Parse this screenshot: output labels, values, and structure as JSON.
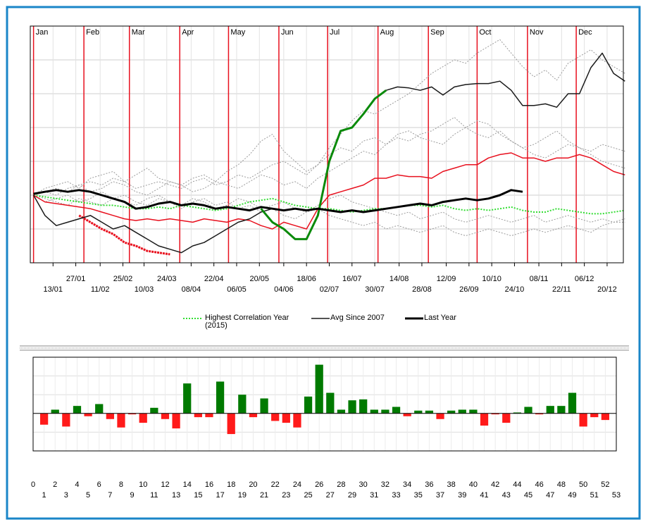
{
  "chart_data": [
    {
      "type": "line",
      "ylim": [
        0,
        7
      ],
      "yticks": [
        0,
        1,
        2,
        3,
        4,
        5,
        6,
        7
      ],
      "xlim": [
        -2,
        363
      ],
      "grid": true,
      "month_markers": [
        {
          "value": 0,
          "label": "Jan"
        },
        {
          "value": 31,
          "label": "Feb"
        },
        {
          "value": 59,
          "label": "Mar"
        },
        {
          "value": 90,
          "label": "Apr"
        },
        {
          "value": 120,
          "label": "May"
        },
        {
          "value": 151,
          "label": "Jun"
        },
        {
          "value": 181,
          "label": "Jul"
        },
        {
          "value": 212,
          "label": "Aug"
        },
        {
          "value": 243,
          "label": "Sep"
        },
        {
          "value": 273,
          "label": "Oct"
        },
        {
          "value": 304,
          "label": "Nov"
        },
        {
          "value": 334,
          "label": "Dec"
        }
      ],
      "month_color": "#e8101e",
      "xticks": [
        {
          "value": 12,
          "label": "13/01"
        },
        {
          "value": 26,
          "label": "27/01"
        },
        {
          "value": 41,
          "label": "11/02"
        },
        {
          "value": 55,
          "label": "25/02"
        },
        {
          "value": 68,
          "label": "10/03"
        },
        {
          "value": 82,
          "label": "24/03"
        },
        {
          "value": 97,
          "label": "08/04"
        },
        {
          "value": 111,
          "label": "22/04"
        },
        {
          "value": 125,
          "label": "06/05"
        },
        {
          "value": 139,
          "label": "20/05"
        },
        {
          "value": 154,
          "label": "04/06"
        },
        {
          "value": 168,
          "label": "18/06"
        },
        {
          "value": 182,
          "label": "02/07"
        },
        {
          "value": 196,
          "label": "16/07"
        },
        {
          "value": 210,
          "label": "30/07"
        },
        {
          "value": 225,
          "label": "14/08"
        },
        {
          "value": 239,
          "label": "28/08"
        },
        {
          "value": 254,
          "label": "12/09"
        },
        {
          "value": 268,
          "label": "26/09"
        },
        {
          "value": 282,
          "label": "10/10"
        },
        {
          "value": 296,
          "label": "24/10"
        },
        {
          "value": 311,
          "label": "08/11"
        },
        {
          "value": 325,
          "label": "22/11"
        },
        {
          "value": 339,
          "label": "06/12"
        },
        {
          "value": 353,
          "label": "20/12"
        }
      ],
      "x": [
        0,
        7,
        14,
        21,
        28,
        35,
        42,
        49,
        56,
        63,
        70,
        77,
        84,
        91,
        98,
        105,
        112,
        119,
        126,
        133,
        140,
        147,
        154,
        161,
        168,
        175,
        182,
        189,
        196,
        203,
        210,
        217,
        224,
        231,
        238,
        245,
        252,
        259,
        266,
        273,
        280,
        287,
        294,
        301,
        308,
        315,
        322,
        329,
        336,
        343,
        350,
        357,
        364
      ],
      "series": [
        {
          "color": "#9a9a9a",
          "width": 1,
          "dash": "2,2",
          "values": [
            2.0,
            2.1,
            2.2,
            2.1,
            2.3,
            2.4,
            2.3,
            2.5,
            2.4,
            2.2,
            2.3,
            2.4,
            2.3,
            2.2,
            2.4,
            2.5,
            2.3,
            2.4,
            2.6,
            2.5,
            2.7,
            2.9,
            3.0,
            2.8,
            2.6,
            2.9,
            3.4,
            3.8,
            4.2,
            4.5,
            4.4,
            4.6,
            4.8,
            5.0,
            5.3,
            5.6,
            5.8,
            6.0,
            5.9,
            6.2,
            6.4,
            6.6,
            6.2,
            5.8,
            5.5,
            5.7,
            5.4,
            5.9,
            6.1,
            6.3,
            6.0,
            5.8,
            5.6
          ]
        },
        {
          "color": "#9a9a9a",
          "width": 1,
          "dash": "2,2",
          "values": [
            2.0,
            2.2,
            2.3,
            2.4,
            2.2,
            2.5,
            2.6,
            2.7,
            2.4,
            2.6,
            2.8,
            2.5,
            2.4,
            2.3,
            2.5,
            2.6,
            2.4,
            2.7,
            2.9,
            3.2,
            3.6,
            3.8,
            3.3,
            3.0,
            2.7,
            2.9,
            3.2,
            3.4,
            3.3,
            3.6,
            3.7,
            3.5,
            3.8,
            3.9,
            3.7,
            3.6,
            3.5,
            3.8,
            4.0,
            4.2,
            4.1,
            3.8,
            3.6,
            3.4,
            3.5,
            3.7,
            3.9,
            3.6,
            3.4,
            3.3,
            3.5,
            3.4,
            3.3
          ]
        },
        {
          "color": "#9a9a9a",
          "width": 1,
          "dash": "2,2",
          "values": [
            2.0,
            1.9,
            1.8,
            1.7,
            1.9,
            1.8,
            1.7,
            1.9,
            2.0,
            1.8,
            1.7,
            1.9,
            1.8,
            1.6,
            1.8,
            1.9,
            1.7,
            1.8,
            1.6,
            1.7,
            1.5,
            1.6,
            1.4,
            1.3,
            1.5,
            1.6,
            1.4,
            1.3,
            1.2,
            1.1,
            1.2,
            1.0,
            1.1,
            1.0,
            0.9,
            1.0,
            1.1,
            0.9,
            0.8,
            0.9,
            1.0,
            0.9,
            0.8,
            0.9,
            1.0,
            0.9,
            1.0,
            1.1,
            1.0,
            0.9,
            1.1,
            1.2,
            1.2
          ]
        },
        {
          "color": "#9a9a9a",
          "width": 1,
          "dash": "2,2",
          "values": [
            2.0,
            2.1,
            2.0,
            2.2,
            2.3,
            2.1,
            2.2,
            2.4,
            2.3,
            2.1,
            2.0,
            2.2,
            2.4,
            2.3,
            2.1,
            2.2,
            2.4,
            2.3,
            2.2,
            2.4,
            2.6,
            2.5,
            2.3,
            2.4,
            2.2,
            2.5,
            2.7,
            2.9,
            3.1,
            3.3,
            3.2,
            3.5,
            3.7,
            3.6,
            3.8,
            3.9,
            4.1,
            4.3,
            4.0,
            3.8,
            3.7,
            3.9,
            3.6,
            3.4,
            3.2,
            3.1,
            3.3,
            3.5,
            3.4,
            3.2,
            3.0,
            2.9,
            2.8
          ]
        },
        {
          "color": "#9a9a9a",
          "width": 1,
          "dash": "2,2",
          "values": [
            2.0,
            1.8,
            1.9,
            2.0,
            1.8,
            1.9,
            2.1,
            1.9,
            1.8,
            1.7,
            1.9,
            2.0,
            1.8,
            1.7,
            1.9,
            1.8,
            1.6,
            1.7,
            1.9,
            1.8,
            1.6,
            1.7,
            1.8,
            1.6,
            1.5,
            1.7,
            1.9,
            2.0,
            1.8,
            1.7,
            1.6,
            1.5,
            1.4,
            1.5,
            1.3,
            1.4,
            1.5,
            1.3,
            1.2,
            1.3,
            1.4,
            1.3,
            1.2,
            1.3,
            1.4,
            1.2,
            1.3,
            1.4,
            1.3,
            1.2,
            1.3,
            1.2,
            1.3
          ]
        },
        {
          "name": "Highest Correlation Year (2015)",
          "color": "#33dd33",
          "width": 2,
          "dash": "2,2",
          "values": [
            2.0,
            1.95,
            1.9,
            1.85,
            1.8,
            1.75,
            1.7,
            1.7,
            1.65,
            1.6,
            1.6,
            1.65,
            1.6,
            1.7,
            1.65,
            1.6,
            1.55,
            1.6,
            1.7,
            1.8,
            1.85,
            1.9,
            1.8,
            1.7,
            1.65,
            1.6,
            1.6,
            1.55,
            1.5,
            1.55,
            1.6,
            1.6,
            1.65,
            1.7,
            1.7,
            1.65,
            1.7,
            1.6,
            1.55,
            1.6,
            1.55,
            1.6,
            1.65,
            1.55,
            1.5,
            1.5,
            1.6,
            1.55,
            1.5,
            1.45,
            1.45,
            1.5,
            1.55
          ]
        },
        {
          "color": "#e8101e",
          "width": 1.5,
          "values": [
            2.0,
            1.8,
            1.75,
            1.7,
            1.65,
            1.6,
            1.5,
            1.4,
            1.3,
            1.25,
            1.3,
            1.25,
            1.3,
            1.25,
            1.2,
            1.3,
            1.25,
            1.2,
            1.3,
            1.25,
            1.1,
            1.0,
            1.2,
            1.1,
            1.0,
            1.6,
            2.0,
            2.1,
            2.2,
            2.3,
            2.5,
            2.5,
            2.6,
            2.55,
            2.55,
            2.5,
            2.7,
            2.8,
            2.9,
            2.9,
            3.1,
            3.2,
            3.25,
            3.1,
            3.1,
            3.0,
            3.1,
            3.1,
            3.2,
            3.1,
            2.9,
            2.7,
            2.6
          ]
        },
        {
          "color": "#e8101e",
          "width": 3,
          "dash": "3,1",
          "values": [
            null,
            null,
            null,
            null,
            1.4,
            1.2,
            1.0,
            0.85,
            0.6,
            0.5,
            0.35,
            0.3,
            0.25,
            null,
            null,
            null,
            null,
            null,
            null,
            null,
            null,
            null,
            null,
            null,
            null,
            null,
            null,
            null,
            null,
            null,
            null,
            null,
            null,
            null,
            null,
            null,
            null,
            null,
            null,
            null,
            null,
            null,
            null,
            null,
            null,
            null,
            null,
            null,
            null,
            null,
            null,
            null,
            null
          ]
        },
        {
          "name": "Avg Since 2007",
          "color": "#1a1a1a",
          "width": 1.5,
          "values": [
            2.0,
            1.4,
            1.1,
            1.2,
            1.3,
            1.4,
            1.2,
            1.0,
            1.1,
            0.9,
            0.7,
            0.5,
            0.4,
            0.3,
            0.5,
            0.6,
            0.8,
            1.0,
            1.2,
            1.3,
            1.5,
            1.6,
            null,
            null,
            null,
            null,
            null,
            null,
            null,
            null,
            null,
            5.1,
            5.2,
            5.17,
            5.1,
            5.2,
            4.96,
            5.2,
            5.27,
            5.3,
            5.3,
            5.37,
            5.1,
            4.65,
            4.65,
            4.7,
            4.6,
            5.0,
            5.0,
            5.77,
            6.2,
            5.6,
            5.37
          ]
        },
        {
          "color": "#0a8a0a",
          "width": 3,
          "values": [
            null,
            null,
            null,
            null,
            null,
            null,
            null,
            null,
            null,
            null,
            null,
            null,
            null,
            null,
            null,
            null,
            null,
            null,
            null,
            null,
            1.6,
            1.2,
            1.0,
            0.7,
            0.7,
            1.4,
            3.0,
            3.9,
            4.0,
            4.4,
            4.85,
            5.1,
            null,
            null,
            null,
            null,
            null,
            null,
            null,
            null,
            null,
            null,
            null,
            null,
            null,
            null,
            null,
            null,
            null,
            null,
            null,
            null,
            null
          ]
        },
        {
          "name": "Last Year",
          "color": "#000000",
          "width": 3,
          "values": [
            2.04,
            2.1,
            2.15,
            2.1,
            2.15,
            2.1,
            2.0,
            1.9,
            1.8,
            1.6,
            1.65,
            1.75,
            1.8,
            1.7,
            1.75,
            1.7,
            1.6,
            1.65,
            1.6,
            1.55,
            1.65,
            1.6,
            1.55,
            1.6,
            1.55,
            1.6,
            1.55,
            1.5,
            1.55,
            1.5,
            1.55,
            1.6,
            1.65,
            1.7,
            1.75,
            1.7,
            1.8,
            1.85,
            1.9,
            1.85,
            1.9,
            2.0,
            2.15,
            2.1,
            null,
            null,
            null,
            null,
            null,
            null,
            null,
            null,
            null
          ]
        }
      ]
    },
    {
      "type": "bar",
      "ylim": [
        -2,
        3
      ],
      "yticks": [
        -2,
        -1,
        0,
        1,
        2,
        3
      ],
      "xlim": [
        0,
        53
      ],
      "grid": true,
      "xticks": [
        0,
        1,
        2,
        3,
        4,
        5,
        6,
        7,
        8,
        9,
        10,
        11,
        12,
        13,
        14,
        15,
        16,
        17,
        18,
        19,
        20,
        21,
        22,
        23,
        24,
        25,
        26,
        27,
        28,
        29,
        30,
        31,
        32,
        33,
        34,
        35,
        36,
        37,
        38,
        39,
        40,
        41,
        42,
        43,
        44,
        45,
        46,
        47,
        48,
        49,
        50,
        51,
        52,
        53
      ],
      "positive_color": "#007a00",
      "negative_color": "#ff1a1a",
      "x": [
        1,
        2,
        3,
        4,
        5,
        6,
        7,
        8,
        9,
        10,
        11,
        12,
        13,
        14,
        15,
        16,
        17,
        18,
        19,
        20,
        21,
        22,
        23,
        24,
        25,
        26,
        27,
        28,
        29,
        30,
        31,
        32,
        33,
        34,
        35,
        36,
        37,
        38,
        39,
        40,
        41,
        42,
        43,
        44,
        45,
        46,
        47,
        48,
        49,
        50,
        51,
        52
      ],
      "values": [
        -0.6,
        0.2,
        -0.7,
        0.4,
        -0.15,
        0.5,
        -0.3,
        -0.75,
        -0.05,
        -0.5,
        0.3,
        -0.3,
        -0.8,
        1.6,
        -0.2,
        -0.2,
        1.7,
        -1.1,
        1.0,
        -0.2,
        0.8,
        -0.4,
        -0.5,
        -0.75,
        0.9,
        2.6,
        1.1,
        0.2,
        0.7,
        0.75,
        0.2,
        0.2,
        0.35,
        -0.15,
        0.15,
        0.15,
        -0.3,
        0.15,
        0.2,
        0.2,
        -0.65,
        -0.05,
        -0.5,
        0.05,
        0.35,
        -0.05,
        0.4,
        0.4,
        1.1,
        -0.7,
        -0.2,
        -0.35
      ]
    }
  ]
}
